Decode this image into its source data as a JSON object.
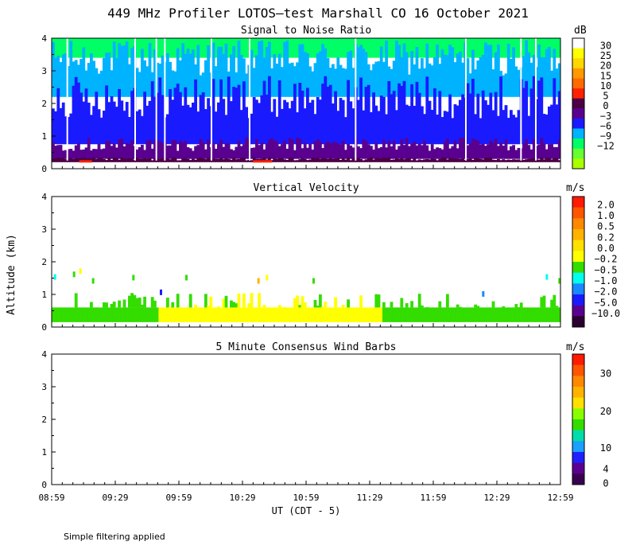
{
  "title": "449 MHz Profiler LOTOS—test Marshall CO 16 October 2021",
  "ylabel": "Altitude (km)",
  "xlabel": "UT  (CDT - 5)",
  "footnote": "Simple filtering applied",
  "x_ticks": [
    "08:59",
    "09:29",
    "09:59",
    "10:29",
    "10:59",
    "11:29",
    "11:59",
    "12:29",
    "12:59"
  ],
  "y_ticks": [
    "0",
    "1",
    "2",
    "3",
    "4"
  ],
  "chart_data": [
    {
      "type": "heatmap",
      "title": "Signal to Noise Ratio",
      "xlim": [
        "08:59",
        "12:59"
      ],
      "ylim": [
        0,
        4
      ],
      "units": "dB",
      "colorbar": {
        "labels": [
          "30",
          "25",
          "20",
          "15",
          "10",
          "5",
          "0",
          "−3",
          "−6",
          "−9",
          "−12"
        ],
        "colors": [
          "#ffffff",
          "#ffff00",
          "#ffd700",
          "#ff9900",
          "#ff6a00",
          "#ff2200",
          "#4b0045",
          "#5a0090",
          "#1a1aff",
          "#00b3ff",
          "#00ff66",
          "#66ff33",
          "#aaff00"
        ]
      },
      "layers": [
        {
          "alt_range": [
            0.2,
            0.3
          ],
          "value_range": "0 to 5",
          "color": "#4b0045"
        },
        {
          "alt_range": [
            0.3,
            0.75
          ],
          "value_range": "-3 to 0",
          "color": "#5a0090"
        },
        {
          "alt_range": [
            0.75,
            2.2
          ],
          "value_range": "-6 to -3",
          "color": "#1a1aff"
        },
        {
          "alt_range": [
            2.2,
            3.4
          ],
          "value_range": "-9 to -6",
          "color": "#00b3ff"
        },
        {
          "alt_range": [
            3.4,
            4.0
          ],
          "value_range": "-12 to -9",
          "color": "#00ff66"
        }
      ],
      "data_gaps": [
        "09:06",
        "09:38",
        "09:48",
        "09:52",
        "10:14",
        "10:32",
        "11:22",
        "12:14",
        "12:40",
        "12:47"
      ]
    },
    {
      "type": "heatmap",
      "title": "Vertical Velocity",
      "xlim": [
        "08:59",
        "12:59"
      ],
      "ylim": [
        0,
        4
      ],
      "units": "m/s",
      "colorbar": {
        "labels": [
          "2.0",
          "1.0",
          "0.5",
          "0.2",
          "0.0",
          "−0.2",
          "−0.5",
          "−1.0",
          "−2.0",
          "−5.0",
          "−10.0"
        ],
        "colors": [
          "#ff1a00",
          "#ff5500",
          "#ff8800",
          "#ffb300",
          "#ffe000",
          "#ffff00",
          "#33dd00",
          "#00ffee",
          "#1a88ff",
          "#1a1aff",
          "#5a0090",
          "#2a0030"
        ]
      },
      "bands": [
        {
          "alt_range": [
            0.15,
            0.6
          ],
          "note": "near-zero velocities",
          "color": "#33dd00"
        },
        {
          "alt_range": [
            0.15,
            0.6
          ],
          "time_range": [
            "09:50",
            "11:35"
          ],
          "color": "#ffff00"
        }
      ]
    },
    {
      "type": "heatmap",
      "title": "5 Minute Consensus Wind Barbs",
      "xlim": [
        "08:59",
        "12:59"
      ],
      "ylim": [
        0,
        4
      ],
      "units": "m/s",
      "colorbar": {
        "labels": [
          "30",
          "20",
          "10",
          "4",
          "0"
        ],
        "colors": [
          "#ff1a00",
          "#ff5500",
          "#ff8800",
          "#ffb300",
          "#ffe000",
          "#88ff00",
          "#33dd00",
          "#00ddaa",
          "#1aa0ff",
          "#2020ff",
          "#5a0090",
          "#3a0050"
        ]
      },
      "barbs": []
    }
  ]
}
